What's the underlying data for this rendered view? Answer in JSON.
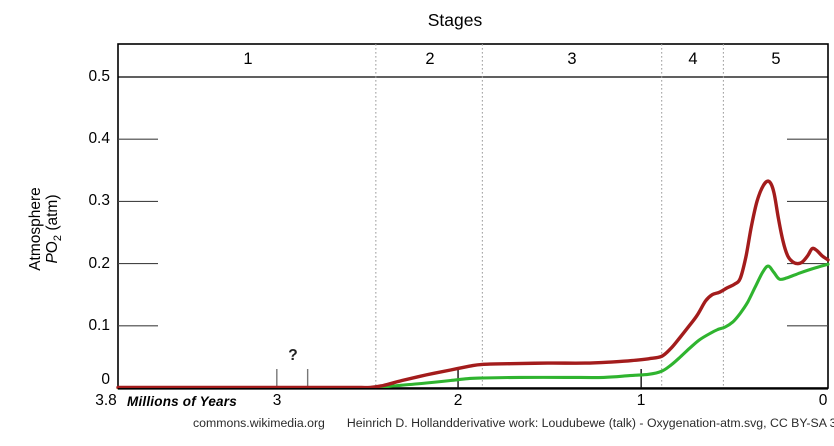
{
  "title": "Stages",
  "stage_labels": [
    "1",
    "2",
    "3",
    "4",
    "5"
  ],
  "y_axis": {
    "label_line1": "Atmosphere",
    "label_p": "P",
    "label_o": "O",
    "label_sub": "2",
    "label_unit": "(atm)",
    "ticks": [
      "0.5",
      "0.4",
      "0.3",
      "0.2",
      "0.1",
      "0"
    ]
  },
  "x_axis": {
    "label": "Millions of Years",
    "ticks": [
      "3.8",
      "3",
      "2",
      "1",
      "0"
    ]
  },
  "uncertainty": {
    "label": "?",
    "t_range": [
      2.95,
      2.785
    ]
  },
  "attribution": {
    "source": "commons.wikimedia.org",
    "credit": "Heinrich D. Hollandderivative work: Loudubewe (talk) - Oxygenation-atm.svg, CC BY-SA 3.0"
  },
  "chart_data": {
    "type": "line",
    "title": "Stages",
    "xlabel": "Millions of Years",
    "ylabel": "Atmosphere PO2 (atm)",
    "xlim": [
      3.8,
      0
    ],
    "ylim": [
      0,
      0.55
    ],
    "x_ticks": [
      3.8,
      3,
      2,
      1,
      0
    ],
    "y_ticks": [
      0,
      0.1,
      0.2,
      0.3,
      0.4,
      0.5
    ],
    "grid": "stage dividers only (vertical dotted)",
    "legend": "none",
    "colors": {
      "upper": "#a31c1c",
      "lower": "#2fb42f",
      "axis": "#000000",
      "divider": "#9a9a9a"
    },
    "stages": [
      {
        "label": "1",
        "from": 3.8,
        "to": 2.42
      },
      {
        "label": "2",
        "from": 2.42,
        "to": 1.85
      },
      {
        "label": "3",
        "from": 1.85,
        "to": 0.89
      },
      {
        "label": "4",
        "from": 0.89,
        "to": 0.56
      },
      {
        "label": "5",
        "from": 0.56,
        "to": 0.0
      }
    ],
    "axis_marks": {
      "gray_ticks": [
        2.95,
        2.785
      ],
      "black_ticks": [
        1.98,
        1.0
      ]
    },
    "uncertainty_marker": {
      "label": "?",
      "at": 2.87
    },
    "series": [
      {
        "name": "red-upper-estimate",
        "color": "#a31c1c",
        "width": 3.4,
        "points": [
          [
            3.8,
            0.001
          ],
          [
            3.2,
            0.001
          ],
          [
            2.8,
            0.001
          ],
          [
            2.55,
            0.001
          ],
          [
            2.45,
            0.001
          ],
          [
            2.38,
            0.004
          ],
          [
            2.28,
            0.012
          ],
          [
            2.15,
            0.021
          ],
          [
            2.02,
            0.029
          ],
          [
            1.92,
            0.035
          ],
          [
            1.85,
            0.038
          ],
          [
            1.7,
            0.039
          ],
          [
            1.5,
            0.04
          ],
          [
            1.3,
            0.04
          ],
          [
            1.15,
            0.042
          ],
          [
            1.05,
            0.044
          ],
          [
            0.96,
            0.047
          ],
          [
            0.89,
            0.051
          ],
          [
            0.84,
            0.064
          ],
          [
            0.79,
            0.082
          ],
          [
            0.74,
            0.101
          ],
          [
            0.7,
            0.117
          ],
          [
            0.655,
            0.14
          ],
          [
            0.62,
            0.15
          ],
          [
            0.58,
            0.154
          ],
          [
            0.54,
            0.161
          ],
          [
            0.5,
            0.167
          ],
          [
            0.47,
            0.176
          ],
          [
            0.44,
            0.21
          ],
          [
            0.41,
            0.26
          ],
          [
            0.38,
            0.3
          ],
          [
            0.345,
            0.326
          ],
          [
            0.315,
            0.332
          ],
          [
            0.29,
            0.315
          ],
          [
            0.265,
            0.272
          ],
          [
            0.24,
            0.235
          ],
          [
            0.215,
            0.212
          ],
          [
            0.19,
            0.203
          ],
          [
            0.165,
            0.2
          ],
          [
            0.14,
            0.202
          ],
          [
            0.11,
            0.212
          ],
          [
            0.085,
            0.224
          ],
          [
            0.06,
            0.221
          ],
          [
            0.03,
            0.212
          ],
          [
            0.0,
            0.206
          ]
        ]
      },
      {
        "name": "green-lower-estimate",
        "color": "#2fb42f",
        "width": 3.1,
        "points": [
          [
            3.8,
            0.0005
          ],
          [
            3.0,
            0.0005
          ],
          [
            2.6,
            0.0005
          ],
          [
            2.42,
            0.001
          ],
          [
            2.3,
            0.004
          ],
          [
            2.15,
            0.008
          ],
          [
            2.02,
            0.012
          ],
          [
            1.93,
            0.015
          ],
          [
            1.85,
            0.016
          ],
          [
            1.65,
            0.017
          ],
          [
            1.4,
            0.017
          ],
          [
            1.2,
            0.017
          ],
          [
            1.06,
            0.02
          ],
          [
            0.96,
            0.022
          ],
          [
            0.89,
            0.027
          ],
          [
            0.84,
            0.037
          ],
          [
            0.79,
            0.05
          ],
          [
            0.74,
            0.064
          ],
          [
            0.69,
            0.077
          ],
          [
            0.63,
            0.088
          ],
          [
            0.59,
            0.094
          ],
          [
            0.55,
            0.098
          ],
          [
            0.51,
            0.106
          ],
          [
            0.47,
            0.12
          ],
          [
            0.43,
            0.138
          ],
          [
            0.39,
            0.162
          ],
          [
            0.35,
            0.186
          ],
          [
            0.32,
            0.196
          ],
          [
            0.29,
            0.186
          ],
          [
            0.26,
            0.175
          ],
          [
            0.22,
            0.177
          ],
          [
            0.15,
            0.185
          ],
          [
            0.07,
            0.193
          ],
          [
            0.0,
            0.199
          ]
        ]
      }
    ]
  }
}
